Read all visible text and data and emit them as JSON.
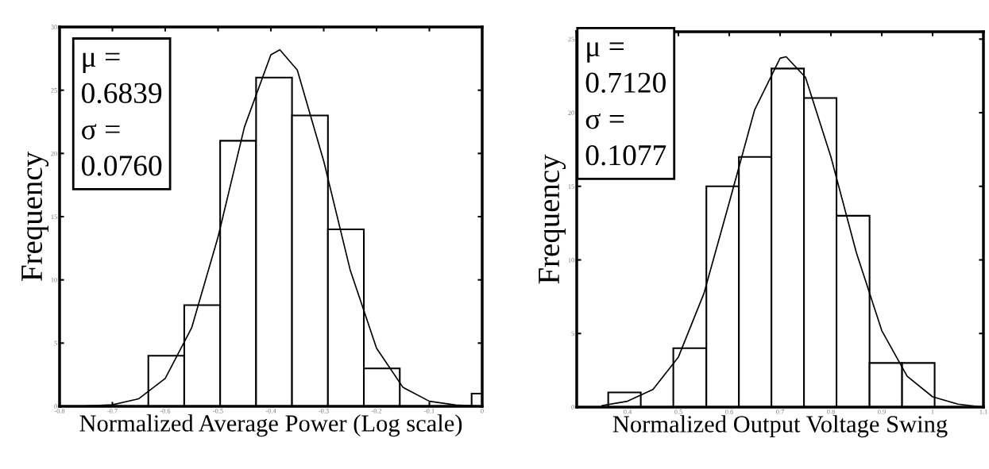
{
  "chart_data": [
    {
      "type": "histogram",
      "xlabel": "Normalized Average Power (Log scale)",
      "ylabel": "Frequency",
      "color": "#ffffff",
      "bins": [
        -0.632,
        -0.564,
        -0.496,
        -0.428,
        -0.36,
        -0.292,
        -0.224,
        -0.156,
        -0.02,
        0
      ],
      "values": [
        4,
        8,
        21,
        26,
        23,
        14,
        3,
        0,
        1
      ],
      "series": [
        {
          "type": "line",
          "color": "#000000",
          "x": [
            -0.8,
            -0.75,
            -0.7,
            -0.65,
            -0.6,
            -0.55,
            -0.5,
            -0.45,
            -0.4,
            -0.383,
            -0.35,
            -0.3,
            -0.25,
            -0.2,
            -0.15,
            -0.1,
            -0.05,
            0
          ],
          "values": [
            0,
            0.02,
            0.12,
            0.6,
            2.2,
            6.2,
            13.4,
            22.1,
            27.8,
            28.2,
            26.6,
            19.4,
            10.8,
            4.6,
            1.5,
            0.4,
            0.1,
            0
          ]
        }
      ],
      "annotations": [
        "μ =\n0.6839\nσ =\n0.0760"
      ],
      "xlim": [
        -0.8,
        0
      ],
      "xticks": [
        -0.8,
        -0.7,
        -0.6,
        -0.5,
        -0.4,
        -0.3,
        -0.2,
        -0.1,
        0
      ],
      "ylim": [
        0,
        30
      ],
      "yticks": [
        0,
        5,
        10,
        15,
        20,
        25,
        30
      ],
      "grid": false,
      "legend": false
    },
    {
      "type": "histogram",
      "xlabel": "Normalized Output Voltage Swing",
      "ylabel": "Frequency",
      "color": "#ffffff",
      "bins": [
        0.362,
        0.426,
        0.49,
        0.555,
        0.619,
        0.683,
        0.747,
        0.811,
        0.876,
        0.94,
        1.004
      ],
      "values": [
        1,
        0,
        4,
        15,
        17,
        23,
        21,
        13,
        3,
        3
      ],
      "series": [
        {
          "type": "line",
          "color": "#000000",
          "x": [
            0.35,
            0.4,
            0.45,
            0.5,
            0.55,
            0.6,
            0.65,
            0.7,
            0.712,
            0.75,
            0.8,
            0.85,
            0.9,
            0.95,
            1.0,
            1.05,
            1.1
          ],
          "values": [
            0.1,
            0.4,
            1.2,
            3.4,
            7.7,
            13.9,
            20.2,
            23.7,
            23.8,
            22.4,
            17.0,
            10.5,
            5.2,
            2.1,
            0.7,
            0.2,
            0
          ]
        }
      ],
      "annotations": [
        "μ =\n0.7120\nσ =\n0.1077"
      ],
      "xlim": [
        0.3,
        1.1
      ],
      "xticks": [
        0.4,
        0.5,
        0.6,
        0.7,
        0.8,
        0.9,
        1,
        1.1
      ],
      "ylim": [
        0,
        25.5
      ],
      "yticks": [
        0,
        5,
        10,
        15,
        20,
        25
      ],
      "grid": false,
      "legend": false
    }
  ]
}
